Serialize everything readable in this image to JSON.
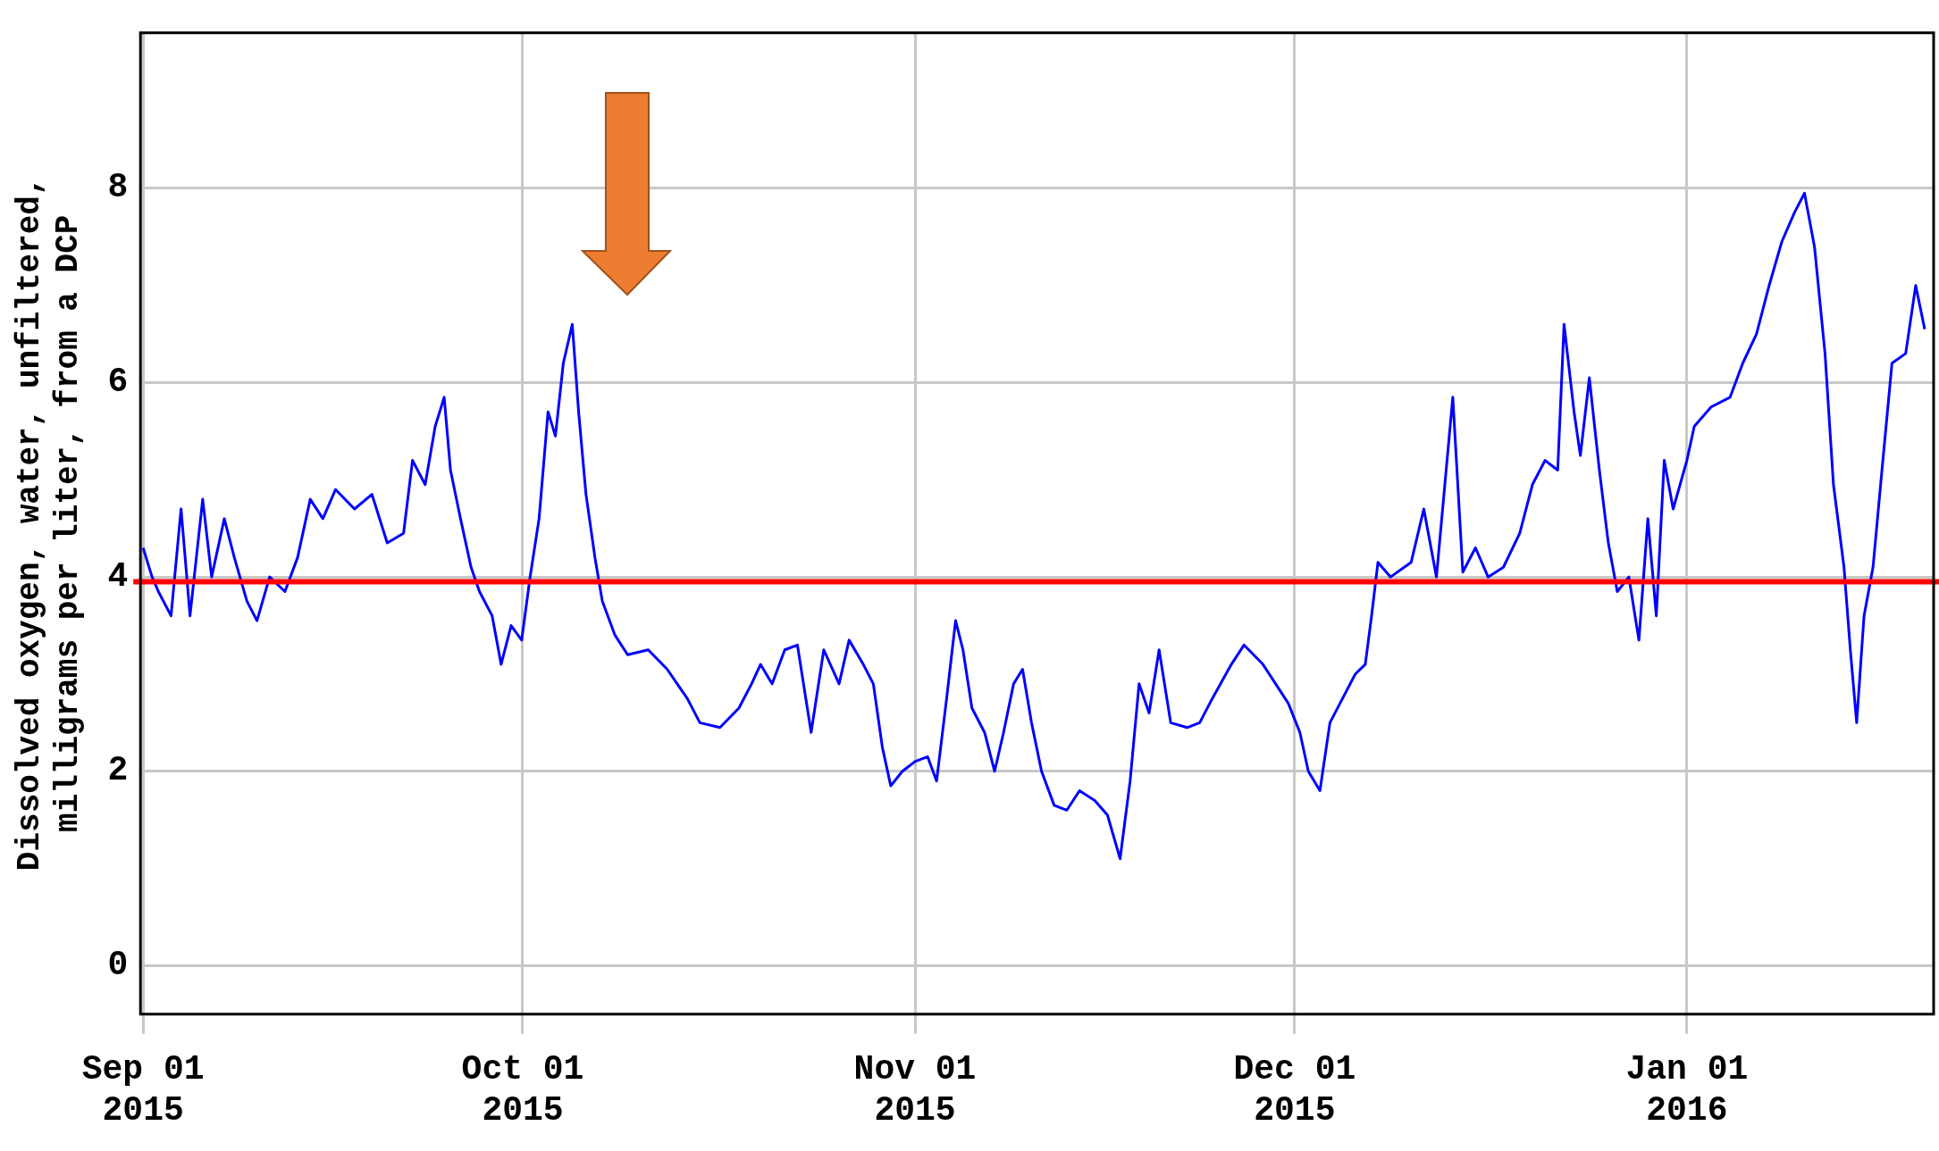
{
  "chart_data": {
    "type": "line",
    "ylabel": "Dissolved oxygen, water, unfiltered,\nmilligrams per liter, from a DCP",
    "xlim": [
      "2015-08-31T19:00",
      "2016-01-20T12:00"
    ],
    "xticks": [
      {
        "value": "2015-09-01",
        "label": "Sep 01\n2015"
      },
      {
        "value": "2015-10-01",
        "label": "Oct 01\n2015"
      },
      {
        "value": "2015-11-01",
        "label": "Nov 01\n2015"
      },
      {
        "value": "2015-12-01",
        "label": "Dec 01\n2015"
      },
      {
        "value": "2016-01-01",
        "label": "Jan 01\n2016"
      }
    ],
    "ylim": [
      -0.5,
      9.6
    ],
    "yticks": [
      0,
      2,
      4,
      6,
      8
    ],
    "grid": true,
    "legend": false,
    "marker": "none",
    "line_style": "solid",
    "ref_lines": [
      {
        "axis": "y",
        "value": 3.95,
        "color": "#ff0000",
        "line_style": "solid"
      }
    ],
    "series": [
      {
        "color": "#0000ff",
        "x": [
          "2015-09-01T00:00",
          "2015-09-01T17:00",
          "2015-09-02T05:00",
          "2015-09-03T05:00",
          "2015-09-04T00:00",
          "2015-09-04T17:00",
          "2015-09-05T17:00",
          "2015-09-06T10:00",
          "2015-09-07T10:00",
          "2015-09-08T05:00",
          "2015-09-09T05:00",
          "2015-09-10T00:00",
          "2015-09-11T00:00",
          "2015-09-12T05:00",
          "2015-09-13T05:00",
          "2015-09-14T05:00",
          "2015-09-15T05:00",
          "2015-09-16T05:00",
          "2015-09-17T17:00",
          "2015-09-19T02:00",
          "2015-09-20T07:00",
          "2015-09-21T14:00",
          "2015-09-22T07:00",
          "2015-09-23T07:00",
          "2015-09-24T02:00",
          "2015-09-24T19:00",
          "2015-09-25T07:00",
          "2015-09-26T02:00",
          "2015-09-26T22:00",
          "2015-09-27T14:00",
          "2015-09-28T14:00",
          "2015-09-29T07:00",
          "2015-09-30T02:00",
          "2015-09-30T22:00",
          "2015-10-01T14:00",
          "2015-10-02T07:00",
          "2015-10-03T00:00",
          "2015-10-03T14:00",
          "2015-10-04T05:00",
          "2015-10-04T22:00",
          "2015-10-05T10:00",
          "2015-10-06T00:00",
          "2015-10-06T17:00",
          "2015-10-07T07:00",
          "2015-10-08T07:00",
          "2015-10-09T07:00",
          "2015-10-10T22:00",
          "2015-10-12T10:00",
          "2015-10-14T00:00",
          "2015-10-15T00:00",
          "2015-10-16T14:00",
          "2015-10-18T02:00",
          "2015-10-19T02:00",
          "2015-10-19T19:00",
          "2015-10-20T17:00",
          "2015-10-21T17:00",
          "2015-10-22T17:00",
          "2015-10-23T19:00",
          "2015-10-24T19:00",
          "2015-10-26T00:00",
          "2015-10-26T19:00",
          "2015-10-27T22:00",
          "2015-10-28T17:00",
          "2015-10-29T10:00",
          "2015-10-30T02:00",
          "2015-10-31T00:00",
          "2015-11-01T00:00",
          "2015-11-02T00:00",
          "2015-11-02T17:00",
          "2015-11-03T12:00",
          "2015-11-04T05:00",
          "2015-11-04T19:00",
          "2015-11-05T12:00",
          "2015-11-06T12:00",
          "2015-11-07T07:00",
          "2015-11-08T00:00",
          "2015-11-08T19:00",
          "2015-11-09T12:00",
          "2015-11-10T05:00",
          "2015-11-11T00:00",
          "2015-11-12T00:00",
          "2015-11-13T00:00",
          "2015-11-14T00:00",
          "2015-11-15T05:00",
          "2015-11-16T05:00",
          "2015-11-17T05:00",
          "2015-11-18T00:00",
          "2015-11-18T17:00",
          "2015-11-19T12:00",
          "2015-11-20T07:00",
          "2015-11-21T05:00",
          "2015-11-22T12:00",
          "2015-11-23T12:00",
          "2015-11-24T12:00",
          "2015-11-26T00:00",
          "2015-11-27T00:00",
          "2015-11-28T12:00",
          "2015-11-29T12:00",
          "2015-11-30T12:00",
          "2015-12-01T10:00",
          "2015-12-02T02:00",
          "2015-12-03T00:00",
          "2015-12-03T19:00",
          "2015-12-04T19:00",
          "2015-12-05T19:00",
          "2015-12-06T14:00",
          "2015-12-07T02:00",
          "2015-12-07T14:00",
          "2015-12-08T14:00",
          "2015-12-10T05:00",
          "2015-12-11T05:00",
          "2015-12-12T05:00",
          "2015-12-13T12:00",
          "2015-12-14T07:00",
          "2015-12-15T07:00",
          "2015-12-16T07:00",
          "2015-12-17T12:00",
          "2015-12-18T19:00",
          "2015-12-19T19:00",
          "2015-12-20T19:00",
          "2015-12-21T19:00",
          "2015-12-22T07:00",
          "2015-12-23T02:00",
          "2015-12-23T14:00",
          "2015-12-24T07:00",
          "2015-12-25T02:00",
          "2015-12-25T19:00",
          "2015-12-26T12:00",
          "2015-12-27T10:00",
          "2015-12-28T05:00",
          "2015-12-28T22:00",
          "2015-12-29T14:00",
          "2015-12-30T05:00",
          "2015-12-30T22:00",
          "2016-01-01T00:00",
          "2016-01-01T14:00",
          "2016-01-02T22:00",
          "2016-01-04T10:00",
          "2016-01-05T10:00",
          "2016-01-06T12:00",
          "2016-01-07T12:00",
          "2016-01-08T12:00",
          "2016-01-09T12:00",
          "2016-01-10T07:00",
          "2016-01-11T02:00",
          "2016-01-11T22:00",
          "2016-01-12T14:00",
          "2016-01-13T10:00",
          "2016-01-13T22:00",
          "2016-01-14T10:00",
          "2016-01-15T00:00",
          "2016-01-15T17:00",
          "2016-01-16T10:00",
          "2016-01-17T05:00",
          "2016-01-18T07:00",
          "2016-01-19T02:00",
          "2016-01-19T19:00"
        ],
        "values": [
          4.3,
          4.0,
          3.85,
          3.6,
          4.7,
          3.6,
          4.8,
          4.0,
          4.6,
          4.2,
          3.75,
          3.55,
          4.0,
          3.85,
          4.2,
          4.8,
          4.6,
          4.9,
          4.7,
          4.85,
          4.35,
          4.45,
          5.2,
          4.95,
          5.55,
          5.85,
          5.1,
          4.6,
          4.1,
          3.85,
          3.6,
          3.1,
          3.5,
          3.35,
          4.0,
          4.6,
          5.7,
          5.45,
          6.2,
          6.6,
          5.7,
          4.85,
          4.2,
          3.75,
          3.4,
          3.2,
          3.25,
          3.05,
          2.75,
          2.5,
          2.45,
          2.65,
          2.9,
          3.1,
          2.9,
          3.25,
          3.3,
          2.4,
          3.25,
          2.9,
          3.35,
          3.1,
          2.9,
          2.25,
          1.85,
          2.0,
          2.1,
          2.15,
          1.9,
          2.75,
          3.55,
          3.25,
          2.65,
          2.4,
          2.0,
          2.4,
          2.9,
          3.05,
          2.5,
          2.0,
          1.65,
          1.6,
          1.8,
          1.7,
          1.55,
          1.1,
          1.9,
          2.9,
          2.6,
          3.25,
          2.5,
          2.45,
          2.5,
          2.75,
          3.1,
          3.3,
          3.1,
          2.9,
          2.7,
          2.4,
          2.0,
          1.8,
          2.5,
          2.75,
          3.0,
          3.1,
          3.6,
          4.15,
          4.0,
          4.15,
          4.7,
          4.0,
          5.85,
          4.05,
          4.3,
          4.0,
          4.1,
          4.45,
          4.95,
          5.2,
          5.1,
          6.6,
          5.7,
          5.25,
          6.05,
          5.1,
          4.35,
          3.85,
          4.0,
          3.35,
          4.6,
          3.6,
          5.2,
          4.7,
          5.2,
          5.55,
          5.75,
          5.85,
          6.2,
          6.5,
          7.0,
          7.45,
          7.75,
          7.95,
          7.4,
          6.3,
          4.95,
          4.1,
          3.25,
          2.5,
          3.6,
          4.1,
          5.1,
          6.2,
          6.3,
          7.0,
          6.55
        ]
      }
    ]
  }
}
